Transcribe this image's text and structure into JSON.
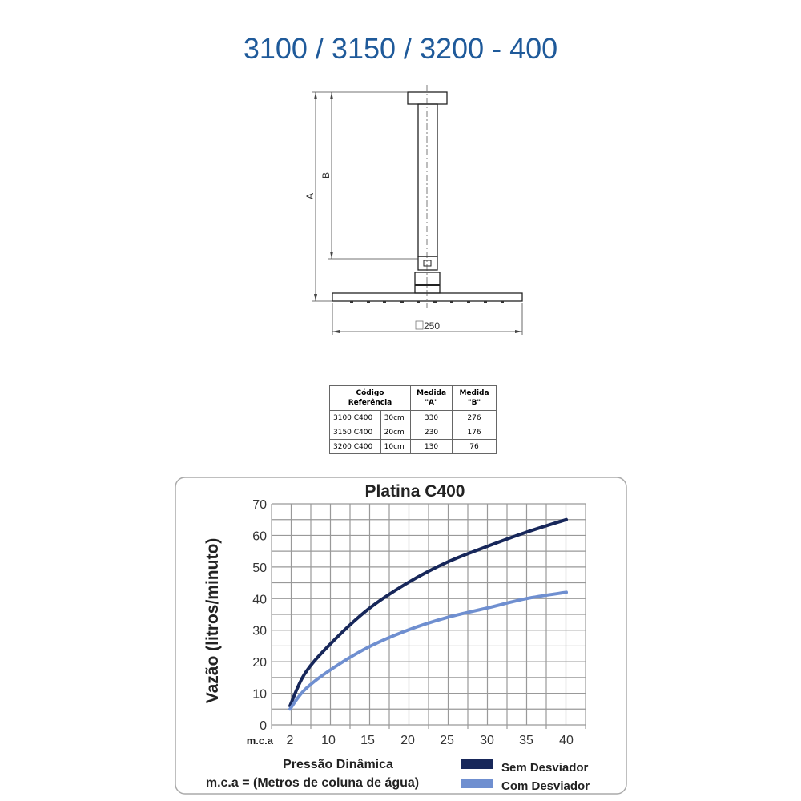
{
  "title": "3100 / 3150 / 3200 - 400",
  "drawing": {
    "label_a": "A",
    "label_b": "B",
    "label_width": "250",
    "width_symbol": "square"
  },
  "table": {
    "headers": [
      "Código Referência",
      "Medida \"A\"",
      "Medida \"B\""
    ],
    "header_code_line1": "Código",
    "header_code_line2": "Referência",
    "header_a_line1": "Medida",
    "header_a_line2": "\"A\"",
    "header_b_line1": "Medida",
    "header_b_line2": "\"B\"",
    "rows": [
      {
        "code": "3100 C400",
        "length": "30cm",
        "a": "330",
        "b": "276"
      },
      {
        "code": "3150 C400",
        "length": "20cm",
        "a": "230",
        "b": "176"
      },
      {
        "code": "3200 C400",
        "length": "10cm",
        "a": "130",
        "b": "76"
      }
    ]
  },
  "chart_data": {
    "type": "line",
    "title": "Platina C400",
    "ylabel": "Vazão (litros/minuto)",
    "xlabel": "Pressão Dinâmica",
    "xunit_label": "m.c.a",
    "footnote": "m.c.a = (Metros de coluna de água)",
    "x_ticks": [
      "2",
      "10",
      "15",
      "20",
      "25",
      "30",
      "35",
      "40"
    ],
    "y_ticks": [
      "0",
      "10",
      "20",
      "30",
      "40",
      "50",
      "60",
      "70"
    ],
    "ylim": [
      0,
      70
    ],
    "grid": true,
    "legend_position": "bottom-right",
    "series": [
      {
        "name": "Sem Desviador",
        "color": "#17275a",
        "x": [
          2,
          5,
          10,
          15,
          20,
          25,
          30,
          35,
          40
        ],
        "y": [
          6,
          16,
          25,
          36.5,
          45,
          51.5,
          56.5,
          61,
          65
        ]
      },
      {
        "name": "Com Desviador",
        "color": "#6f8fd0",
        "x": [
          2,
          5,
          10,
          15,
          20,
          25,
          30,
          35,
          40
        ],
        "y": [
          5,
          11,
          17,
          24.5,
          30,
          34,
          37,
          40,
          42
        ]
      }
    ]
  }
}
